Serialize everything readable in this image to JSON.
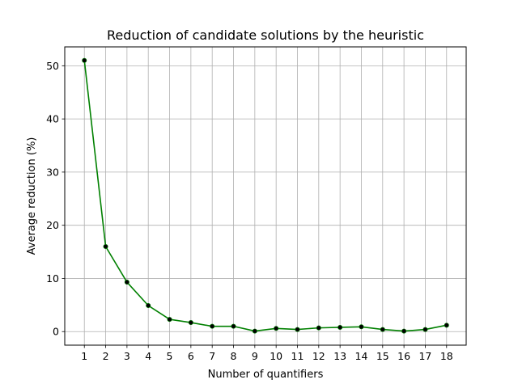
{
  "chart_data": {
    "type": "line",
    "title": "Reduction of candidate solutions by the heuristic",
    "xlabel": "Number of quantifiers",
    "ylabel": "Average reduction (%)",
    "x": [
      1,
      2,
      3,
      4,
      5,
      6,
      7,
      8,
      9,
      10,
      11,
      12,
      13,
      14,
      15,
      16,
      17,
      18
    ],
    "xticks": [
      "1",
      "2",
      "3",
      "4",
      "5",
      "6",
      "7",
      "8",
      "9",
      "10",
      "11",
      "12",
      "13",
      "14",
      "15",
      "16",
      "17",
      "18"
    ],
    "yticks": [
      "0",
      "10",
      "20",
      "30",
      "40",
      "50"
    ],
    "series": [
      {
        "values": [
          51.0,
          16.0,
          9.3,
          4.9,
          2.3,
          1.7,
          1.0,
          1.0,
          0.1,
          0.6,
          0.4,
          0.7,
          0.8,
          0.9,
          0.4,
          0.1,
          0.4,
          1.2
        ],
        "line_color": "#008000",
        "marker_color": "#000000"
      }
    ],
    "xlim": [
      0.08,
      18.92
    ],
    "ylim": [
      -2.55,
      53.55
    ],
    "grid": true,
    "grid_color": "#b0b0b0"
  }
}
